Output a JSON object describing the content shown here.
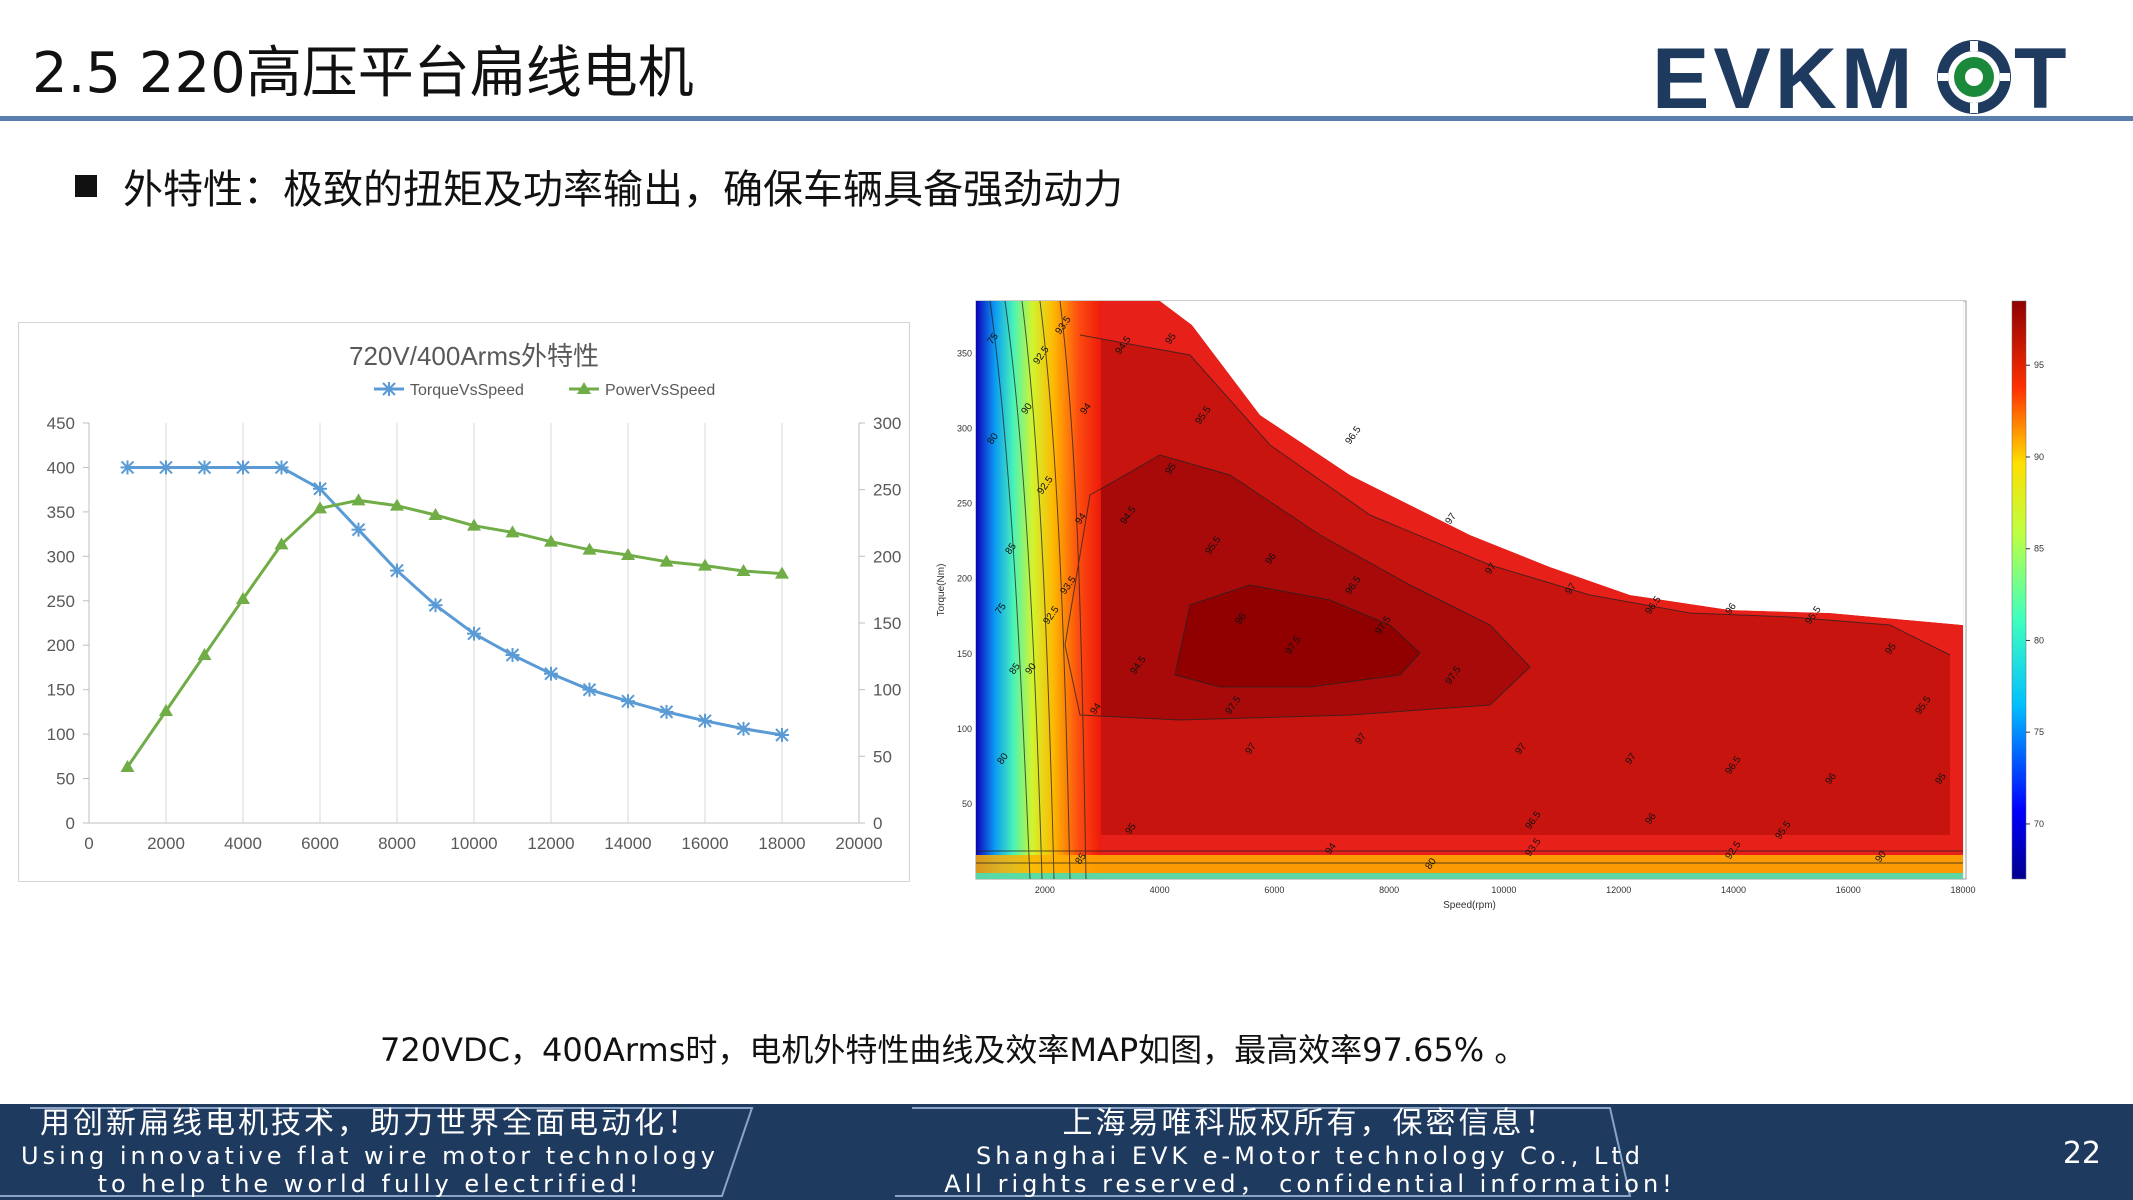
{
  "slide": {
    "title": "2.5 220高压平台扁线电机",
    "bullet": "外特性：极致的扭矩及功率输出，确保车辆具备强劲动力",
    "caption": "720VDC，400Arms时，电机外特性曲线及效率MAP如图，最高效率97.65% 。",
    "page_number": "22"
  },
  "logo": {
    "text_left": "EVKM",
    "text_right": "T",
    "icon": "gear-o-icon",
    "color": "#1f3a5f",
    "accent": "#1a8a3a"
  },
  "footer": {
    "left_cn": "用创新扁线电机技术，助力世界全面电动化！",
    "left_en_1": "Using innovative flat wire motor technology",
    "left_en_2": "to help the world fully electrified!",
    "right_cn": "上海易唯科版权所有，保密信息！",
    "right_en_1": "Shanghai EVK e-Motor technology Co., Ltd",
    "right_en_2": "All rights reserved，  confidential information!"
  },
  "chart_data": [
    {
      "type": "line",
      "title": "720V/400Arms外特性",
      "x": [
        1000,
        2000,
        3000,
        4000,
        5000,
        6000,
        7000,
        8000,
        9000,
        10000,
        11000,
        12000,
        13000,
        14000,
        15000,
        16000,
        17000,
        18000
      ],
      "xlim": [
        0,
        20000
      ],
      "x_ticks": [
        "0",
        "2000",
        "4000",
        "6000",
        "8000",
        "10000",
        "12000",
        "14000",
        "16000",
        "18000",
        "20000"
      ],
      "y_left_ticks": [
        "0",
        "50",
        "100",
        "150",
        "200",
        "250",
        "300",
        "350",
        "400",
        "450"
      ],
      "y_right_ticks": [
        "0",
        "50",
        "100",
        "150",
        "200",
        "250",
        "300"
      ],
      "ylim_left": [
        0,
        450
      ],
      "ylim_right": [
        0,
        300
      ],
      "legend_position": "top",
      "grid": true,
      "series": [
        {
          "name": "TorqueVsSpeed",
          "axis": "left",
          "color": "#5b9bd5",
          "marker": "asterisk",
          "values": [
            400,
            400,
            400,
            400,
            400,
            376,
            330,
            284,
            245,
            213,
            189,
            168,
            150,
            137,
            125,
            115,
            106,
            99
          ]
        },
        {
          "name": "PowerVsSpeed",
          "axis": "right",
          "color": "#70ad47",
          "marker": "triangle",
          "values": [
            42,
            84,
            126,
            168,
            209,
            236,
            242,
            238,
            231,
            223,
            218,
            211,
            205,
            201,
            196,
            193,
            189,
            187
          ]
        }
      ]
    },
    {
      "type": "heatmap",
      "xlabel": "Speed(rpm)",
      "ylabel": "Torque(Nm)",
      "x_ticks": [
        "2000",
        "4000",
        "6000",
        "8000",
        "10000",
        "12000",
        "14000",
        "16000",
        "18000"
      ],
      "y_ticks": [
        "50",
        "100",
        "150",
        "200",
        "250",
        "300",
        "350"
      ],
      "colorbar_ticks": [
        "70",
        "75",
        "80",
        "85",
        "90",
        "95"
      ],
      "xlim": [
        800,
        18000
      ],
      "ylim": [
        0,
        385
      ],
      "contour_labels": [
        "75",
        "80",
        "85",
        "90",
        "92.5",
        "93.5",
        "94",
        "94.5",
        "95",
        "95.5",
        "96",
        "96.5",
        "97",
        "97.5"
      ],
      "max_efficiency": 97.65
    }
  ]
}
